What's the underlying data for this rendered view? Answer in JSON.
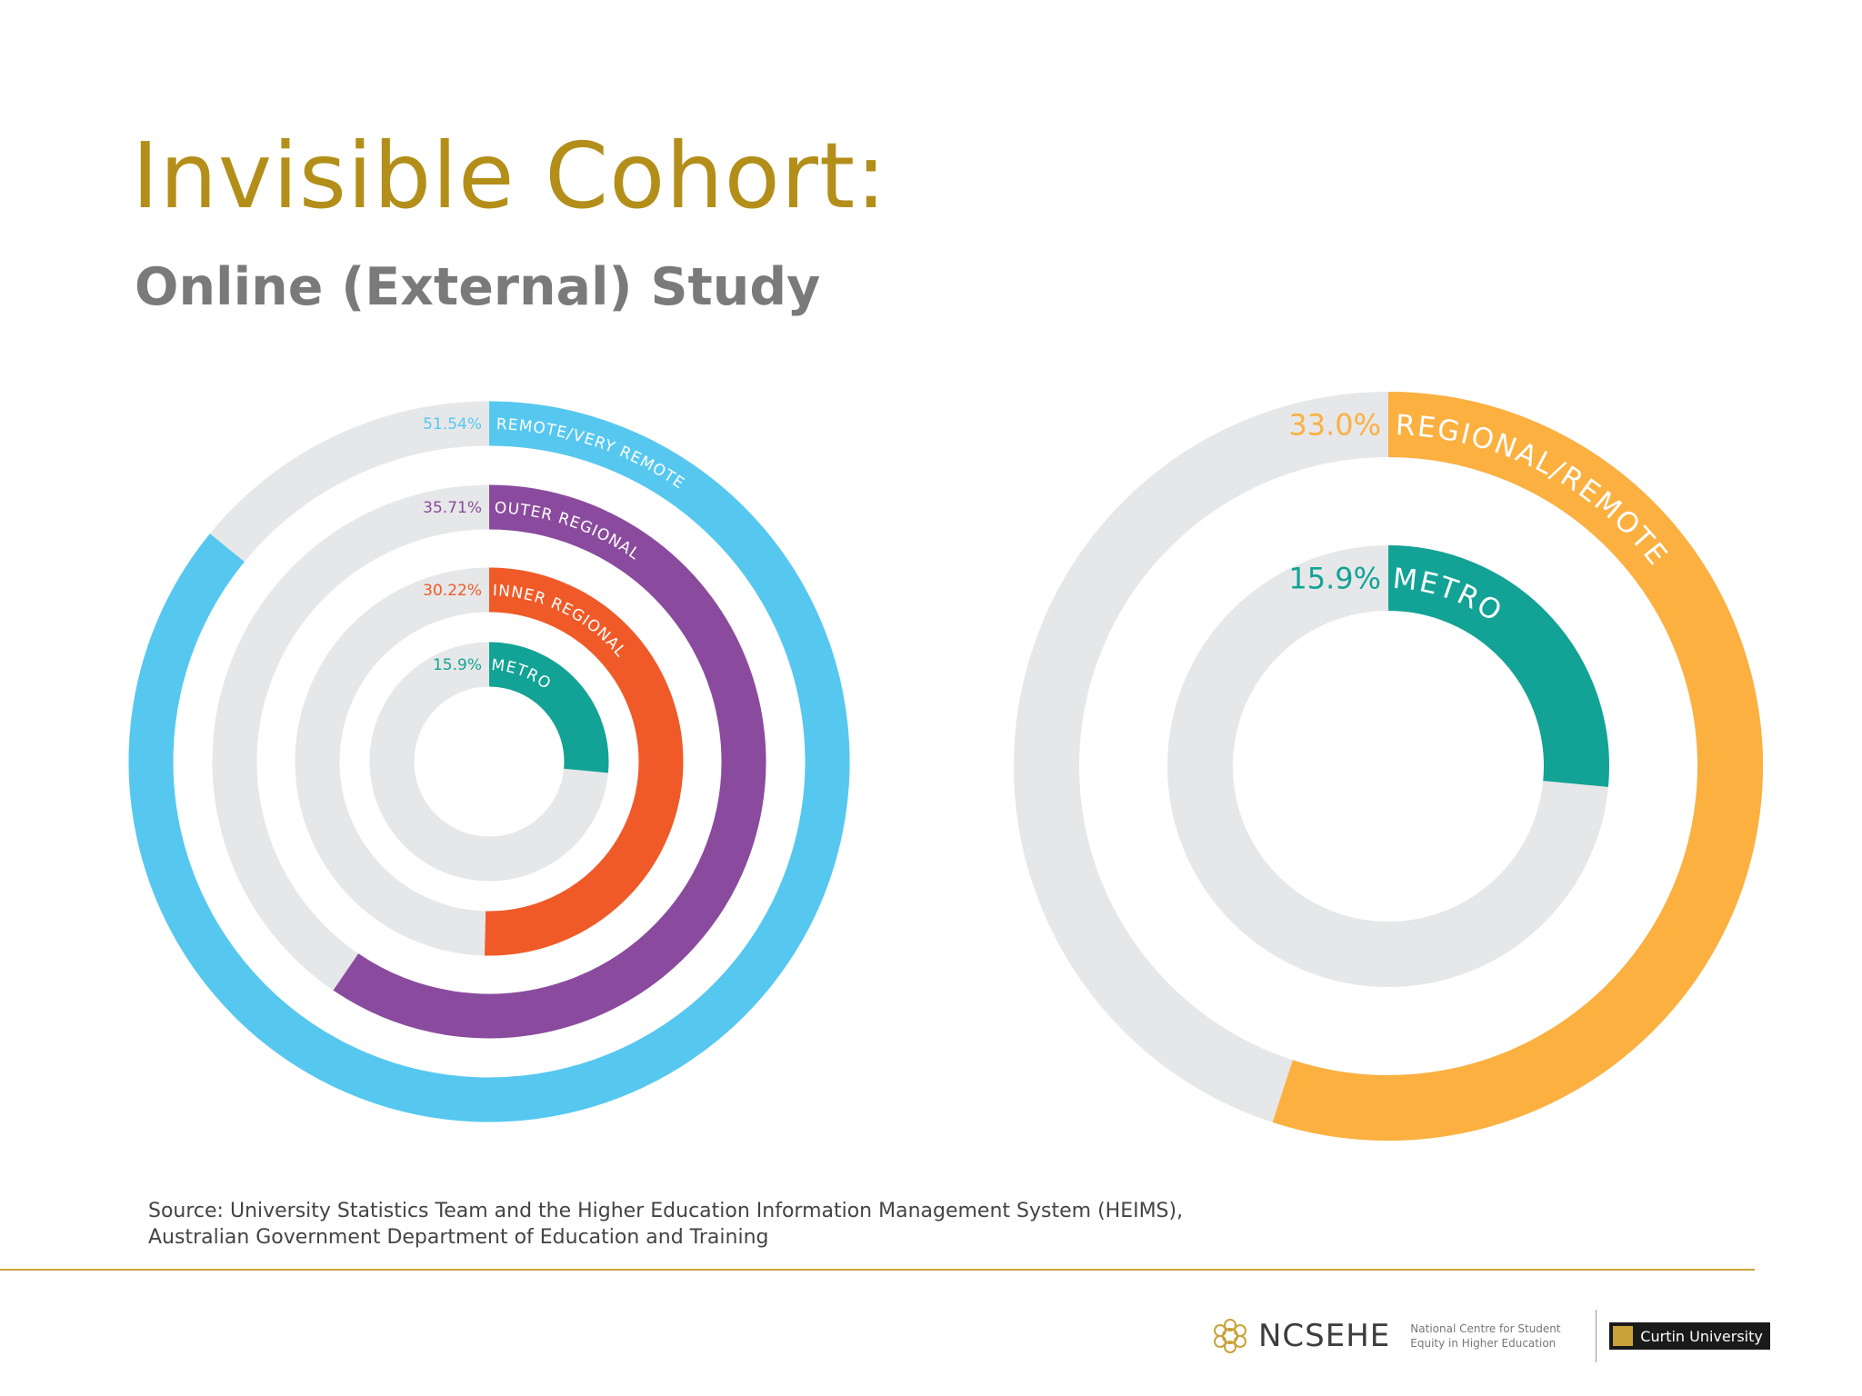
{
  "header": {
    "title": "Invisible Cohort:",
    "subtitle": "Online (External) Study"
  },
  "chart_data": [
    {
      "type": "radial-bar",
      "series": [
        {
          "name": "REMOTE/VERY REMOTE",
          "value": 51.54,
          "label": "51.54%",
          "color": "#56c8f0"
        },
        {
          "name": "OUTER REGIONAL",
          "value": 35.71,
          "label": "35.71%",
          "color": "#8a4b9e"
        },
        {
          "name": "INNER REGIONAL",
          "value": 30.22,
          "label": "30.22%",
          "color": "#f05a28"
        },
        {
          "name": "METRO",
          "value": 15.9,
          "label": "15.9%",
          "color": "#13a396"
        }
      ]
    },
    {
      "type": "radial-bar",
      "series": [
        {
          "name": "REGIONAL/REMOTE",
          "value": 33.0,
          "label": "33.0%",
          "color": "#fbb040"
        },
        {
          "name": "METRO",
          "value": 15.9,
          "label": "15.9%",
          "color": "#13a396"
        }
      ]
    }
  ],
  "source": {
    "line1": "Source: University Statistics Team and the Higher Education Information Management System (HEIMS),",
    "line2": "Australian Government Department of Education and Training"
  },
  "footer": {
    "ncsehe_name": "NCSEHE",
    "ncsehe_desc_1": "National Centre for Student",
    "ncsehe_desc_2": "Equity in Higher Education",
    "curtin": "Curtin University"
  }
}
